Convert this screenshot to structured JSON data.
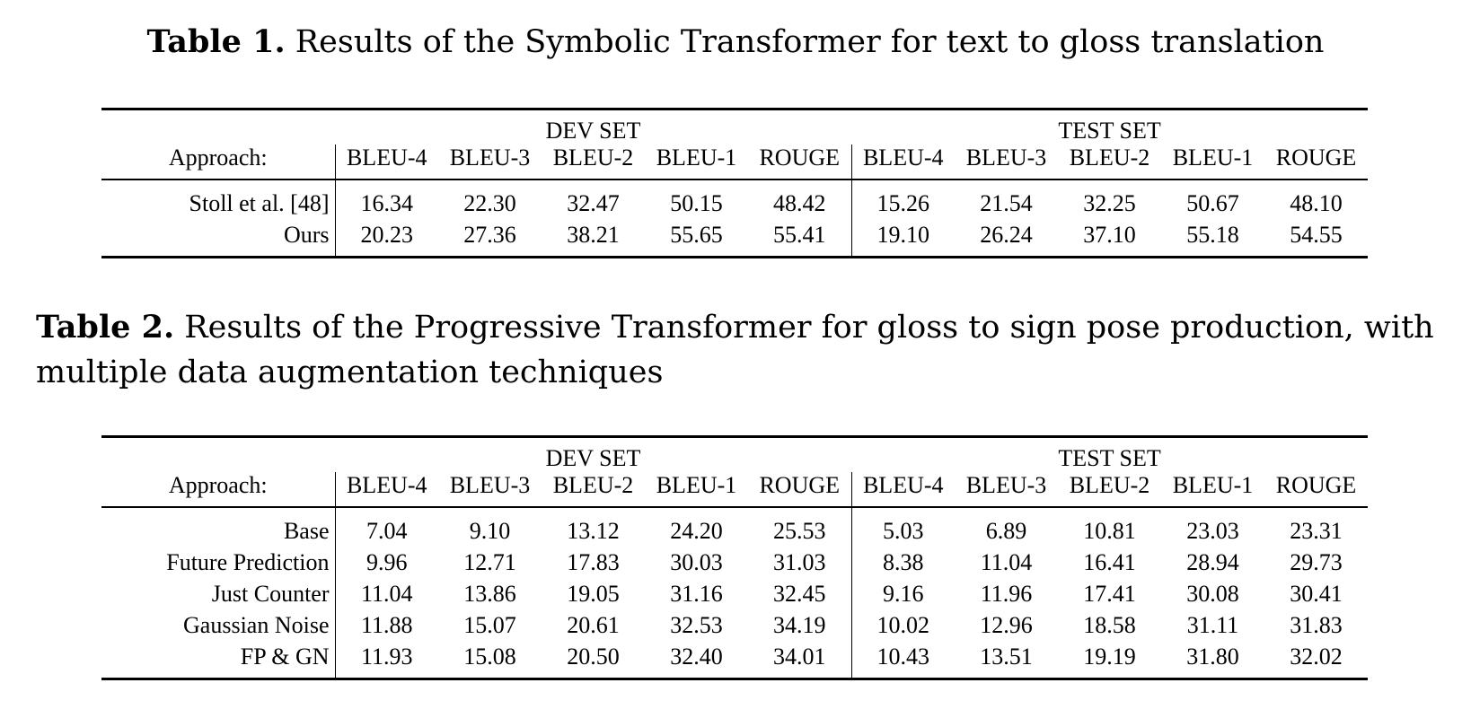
{
  "table1": {
    "caption_label": "Table 1.",
    "caption_text": " Results of the Symbolic Transformer for text to gloss translation",
    "dev_set_label": "DEV SET",
    "test_set_label": "TEST SET",
    "approach_label": "Approach:",
    "metrics": [
      "BLEU-4",
      "BLEU-3",
      "BLEU-2",
      "BLEU-1",
      "ROUGE"
    ],
    "rows": [
      {
        "name": "Stoll et al. [48]",
        "dev": [
          "16.34",
          "22.30",
          "32.47",
          "50.15",
          "48.42"
        ],
        "test": [
          "15.26",
          "21.54",
          "32.25",
          "50.67",
          "48.10"
        ],
        "dev_bold": [
          false,
          false,
          false,
          false,
          false
        ],
        "test_bold": [
          false,
          false,
          false,
          false,
          false
        ]
      },
      {
        "name": "Ours",
        "dev": [
          "20.23",
          "27.36",
          "38.21",
          "55.65",
          "55.41"
        ],
        "test": [
          "19.10",
          "26.24",
          "37.10",
          "55.18",
          "54.55"
        ],
        "dev_bold": [
          true,
          true,
          true,
          true,
          true
        ],
        "test_bold": [
          true,
          true,
          true,
          true,
          true
        ]
      }
    ]
  },
  "table2": {
    "caption_label": "Table 2.",
    "caption_text": " Results of the Progressive Transformer for gloss to sign pose production, with multiple data augmentation techniques",
    "dev_set_label": "DEV SET",
    "test_set_label": "TEST SET",
    "approach_label": "Approach:",
    "metrics": [
      "BLEU-4",
      "BLEU-3",
      "BLEU-2",
      "BLEU-1",
      "ROUGE"
    ],
    "rows": [
      {
        "name": "Base",
        "dev": [
          "7.04",
          "9.10",
          "13.12",
          "24.20",
          "25.53"
        ],
        "test": [
          "5.03",
          "6.89",
          "10.81",
          "23.03",
          "23.31"
        ],
        "dev_bold": [
          false,
          false,
          false,
          false,
          false
        ],
        "test_bold": [
          false,
          false,
          false,
          false,
          false
        ]
      },
      {
        "name": "Future Prediction",
        "dev": [
          "9.96",
          "12.71",
          "17.83",
          "30.03",
          "31.03"
        ],
        "test": [
          "8.38",
          "11.04",
          "16.41",
          "28.94",
          "29.73"
        ],
        "dev_bold": [
          false,
          false,
          false,
          false,
          false
        ],
        "test_bold": [
          false,
          false,
          false,
          false,
          false
        ]
      },
      {
        "name": "Just Counter",
        "dev": [
          "11.04",
          "13.86",
          "19.05",
          "31.16",
          "32.45"
        ],
        "test": [
          "9.16",
          "11.96",
          "17.41",
          "30.08",
          "30.41"
        ],
        "dev_bold": [
          false,
          false,
          false,
          false,
          false
        ],
        "test_bold": [
          false,
          false,
          false,
          false,
          false
        ]
      },
      {
        "name": "Gaussian Noise",
        "dev": [
          "11.88",
          "15.07",
          "20.61",
          "32.53",
          "34.19"
        ],
        "test": [
          "10.02",
          "12.96",
          "18.58",
          "31.11",
          "31.83"
        ],
        "dev_bold": [
          false,
          false,
          true,
          true,
          true
        ],
        "test_bold": [
          false,
          false,
          false,
          false,
          false
        ]
      },
      {
        "name": "FP & GN",
        "dev": [
          "11.93",
          "15.08",
          "20.50",
          "32.40",
          "34.01"
        ],
        "test": [
          "10.43",
          "13.51",
          "19.19",
          "31.80",
          "32.02"
        ],
        "dev_bold": [
          true,
          true,
          false,
          false,
          false
        ],
        "test_bold": [
          true,
          true,
          true,
          true,
          true
        ]
      }
    ]
  }
}
